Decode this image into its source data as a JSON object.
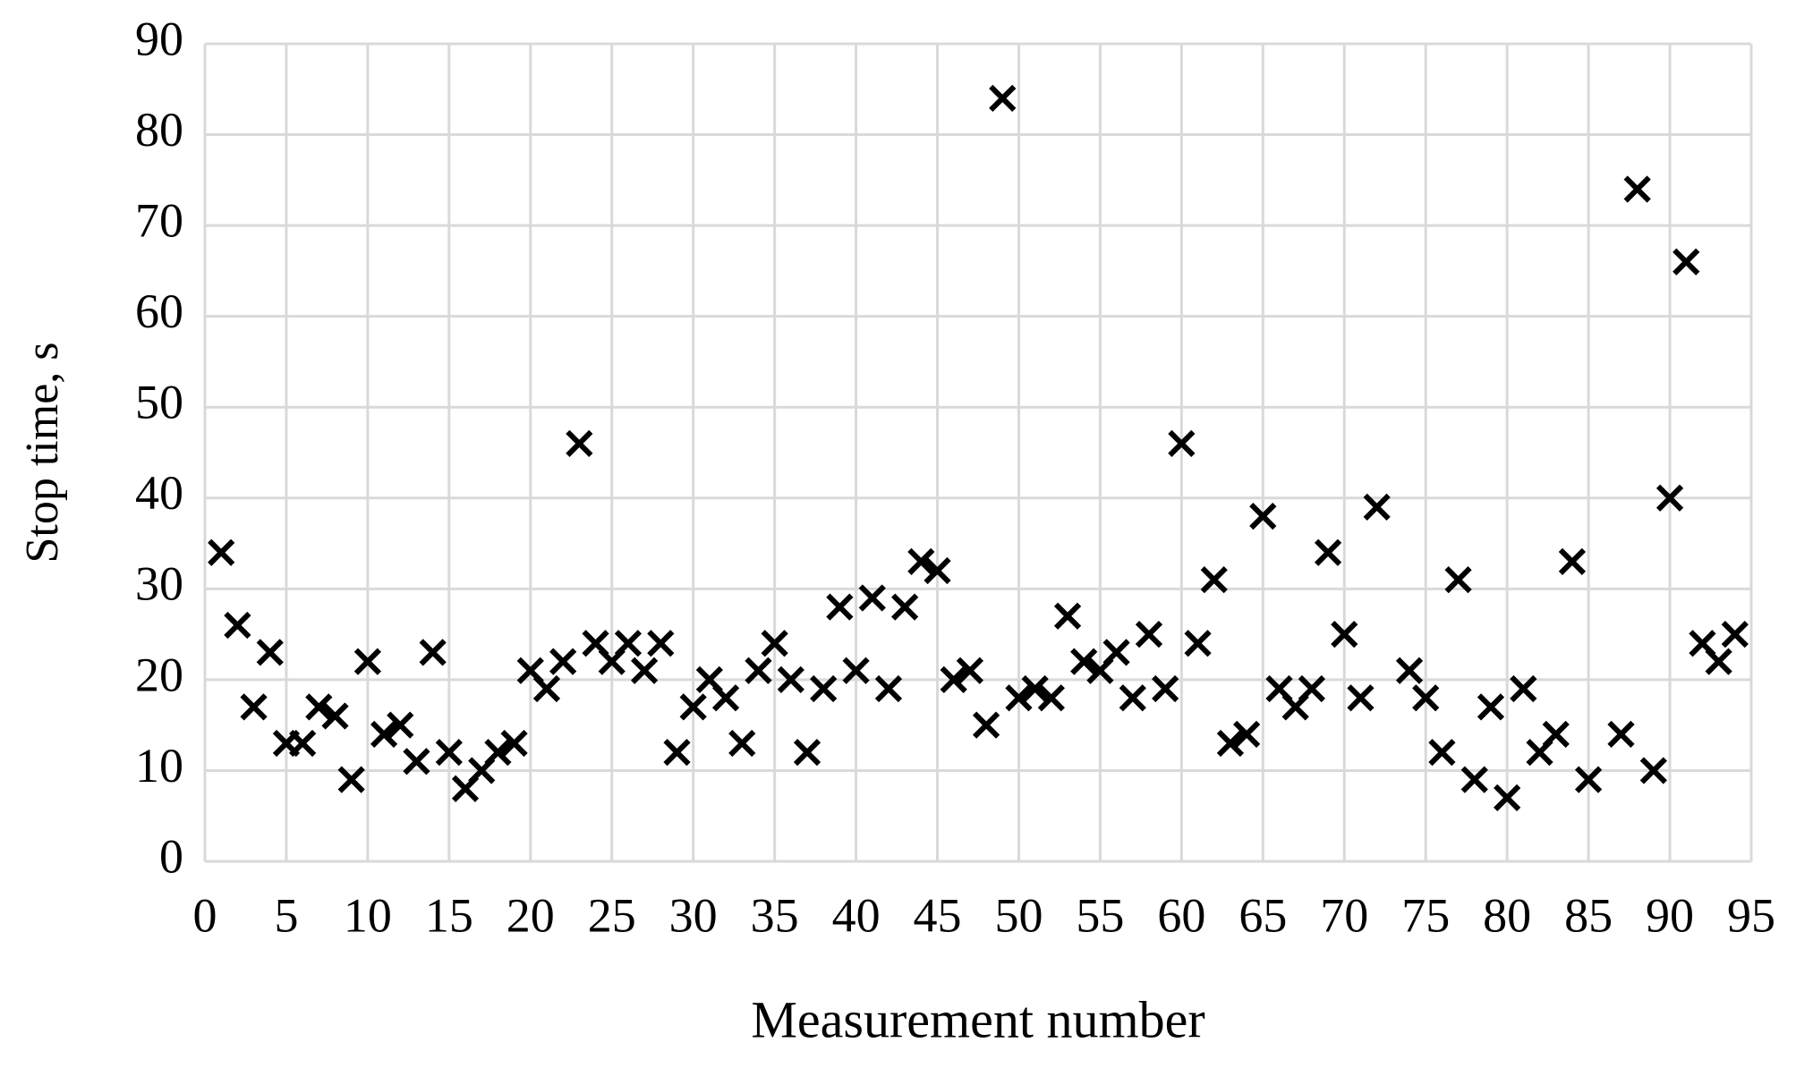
{
  "chart_data": {
    "type": "scatter",
    "xlabel": "Measurement number",
    "ylabel": "Stop time, s",
    "x": [
      1,
      2,
      3,
      4,
      5,
      6,
      7,
      8,
      9,
      10,
      11,
      12,
      13,
      14,
      15,
      16,
      17,
      18,
      19,
      20,
      21,
      22,
      23,
      24,
      25,
      26,
      27,
      28,
      29,
      30,
      31,
      32,
      33,
      34,
      35,
      36,
      37,
      38,
      39,
      40,
      41,
      42,
      43,
      44,
      45,
      46,
      47,
      48,
      49,
      50,
      51,
      52,
      53,
      54,
      55,
      56,
      57,
      58,
      59,
      60,
      61,
      62,
      63,
      64,
      65,
      66,
      67,
      68,
      69,
      70,
      71,
      72,
      74,
      75,
      76,
      77,
      78,
      79,
      80,
      81,
      82,
      83,
      84,
      85,
      87,
      88,
      89,
      90,
      91,
      92,
      93,
      94
    ],
    "series": [
      {
        "color": "#000000",
        "marker": "x",
        "values": [
          34,
          26,
          17,
          23,
          13,
          13,
          17,
          16,
          9,
          22,
          14,
          15,
          11,
          23,
          12,
          8,
          10,
          12,
          13,
          21,
          19,
          22,
          46,
          24,
          22,
          24,
          21,
          24,
          12,
          17,
          20,
          18,
          13,
          21,
          24,
          20,
          12,
          19,
          28,
          21,
          29,
          19,
          28,
          33,
          32,
          20,
          21,
          15,
          84,
          18,
          19,
          18,
          27,
          22,
          21,
          23,
          18,
          25,
          19,
          46,
          24,
          31,
          13,
          14,
          38,
          19,
          17,
          19,
          34,
          25,
          18,
          39,
          21,
          18,
          12,
          31,
          9,
          17,
          7,
          19,
          12,
          14,
          33,
          9,
          14,
          74,
          10,
          40,
          66,
          24,
          22,
          25
        ]
      }
    ],
    "xlim": [
      0,
      95
    ],
    "xticks": [
      0,
      5,
      10,
      15,
      20,
      25,
      30,
      35,
      40,
      45,
      50,
      55,
      60,
      65,
      70,
      75,
      80,
      85,
      90,
      95
    ],
    "ylim": [
      0,
      90
    ],
    "yticks": [
      0,
      10,
      20,
      30,
      40,
      50,
      60,
      70,
      80,
      90
    ],
    "grid": true
  }
}
